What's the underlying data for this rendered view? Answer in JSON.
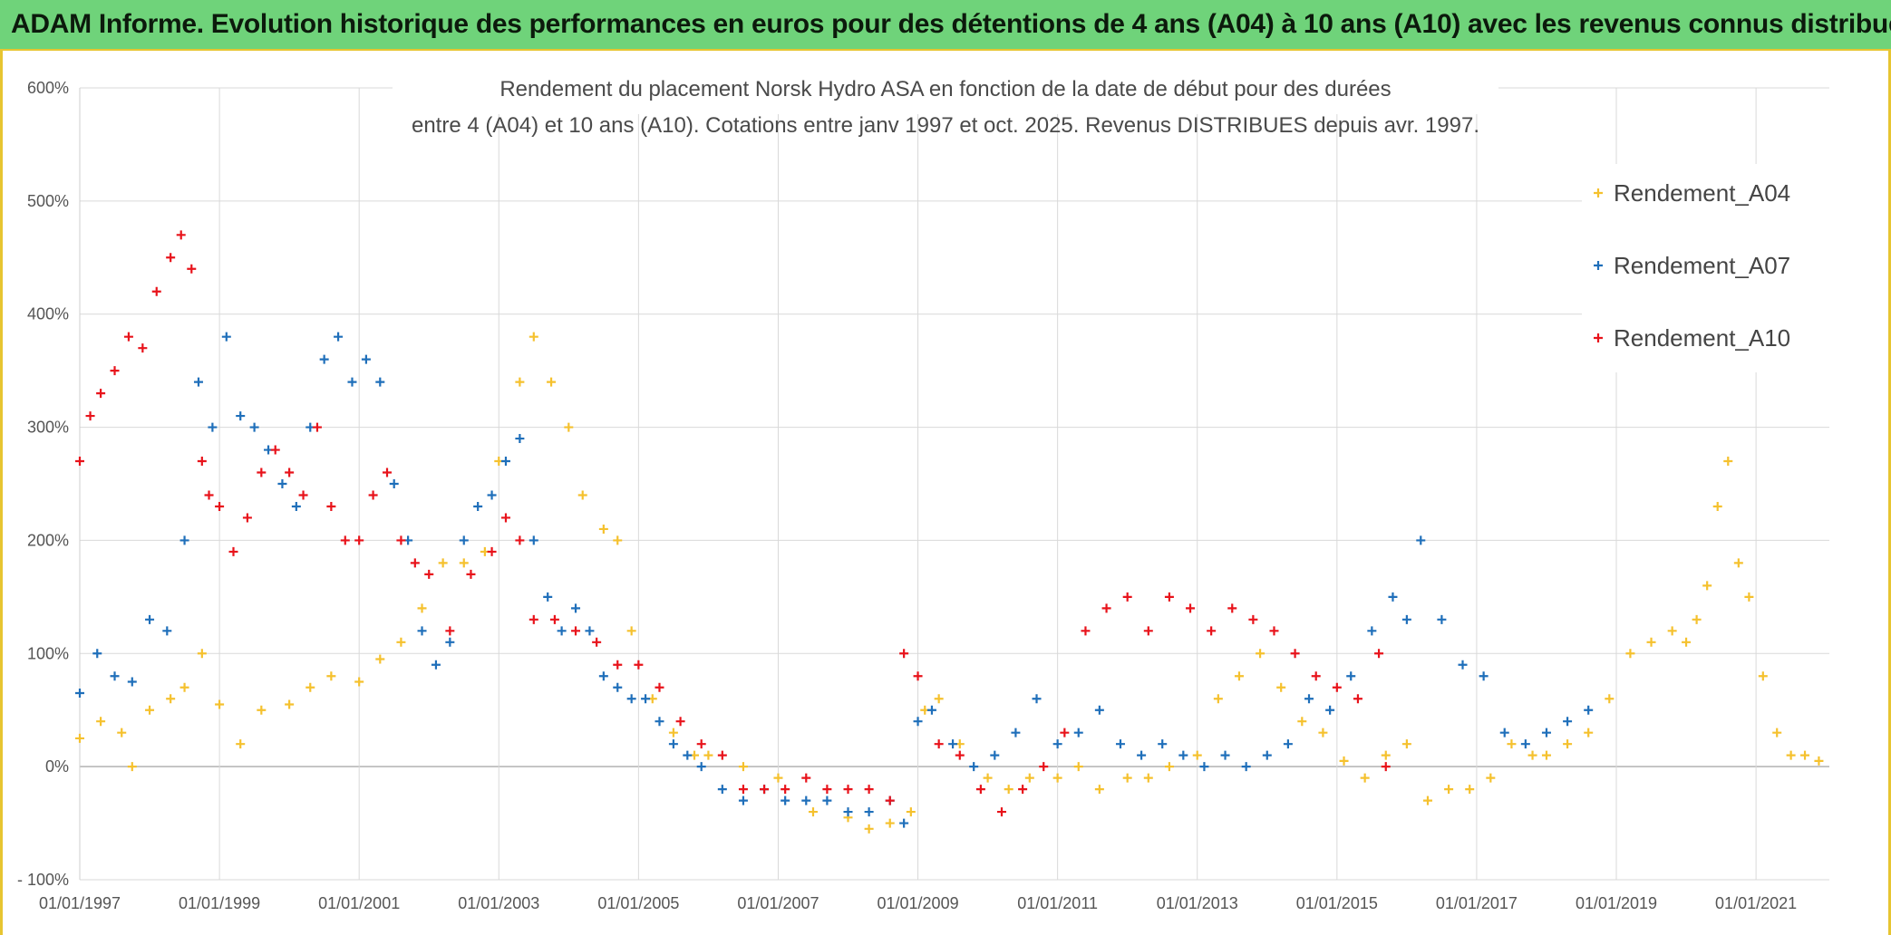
{
  "banner": {
    "text": "ADAM Informe. Evolution historique des performances en euros pour des détentions de 4 ans (A04) à 10 ans (A10) avec les revenus connus distribués",
    "color": "#6fd37a"
  },
  "chart_data": {
    "type": "scatter",
    "title_line1": "Rendement du placement Norsk Hydro ASA en fonction de la date de début pour des durées",
    "title_line2": "entre 4 (A04) et 10 ans (A10). Cotations entre janv 1997 et oct. 2025. Revenus DISTRIBUES depuis avr. 1997.",
    "xlabel": "",
    "ylabel": "",
    "xlim": [
      1997.0,
      2022.05
    ],
    "ylim": [
      -100,
      600
    ],
    "grid": true,
    "legend_position": "top-right",
    "x_tick_labels": [
      "01/01/1997",
      "01/01/1999",
      "01/01/2001",
      "01/01/2003",
      "01/01/2005",
      "01/01/2007",
      "01/01/2009",
      "01/01/2011",
      "01/01/2013",
      "01/01/2015",
      "01/01/2017",
      "01/01/2019",
      "01/01/2021"
    ],
    "x_tick_values": [
      1997,
      1999,
      2001,
      2003,
      2005,
      2007,
      2009,
      2011,
      2013,
      2015,
      2017,
      2019,
      2021
    ],
    "y_tick_labels": [
      "- 100%",
      "0%",
      "100%",
      "200%",
      "300%",
      "400%",
      "500%",
      "600%"
    ],
    "y_tick_values": [
      -100,
      0,
      100,
      200,
      300,
      400,
      500,
      600
    ],
    "series": [
      {
        "name": "Rendement_A04",
        "color": "#f5c12e",
        "x": [
          1997.0,
          1997.3,
          1997.6,
          1997.75,
          1998.0,
          1998.3,
          1998.5,
          1998.75,
          1999.0,
          1999.3,
          1999.6,
          2000.0,
          2000.3,
          2000.6,
          2001.0,
          2001.3,
          2001.6,
          2001.9,
          2002.2,
          2002.5,
          2002.8,
          2003.0,
          2003.3,
          2003.5,
          2003.75,
          2004.0,
          2004.2,
          2004.5,
          2004.7,
          2004.9,
          2005.2,
          2005.5,
          2005.8,
          2006.0,
          2006.5,
          2007.0,
          2007.5,
          2008.0,
          2008.3,
          2008.6,
          2008.9,
          2009.1,
          2009.3,
          2009.6,
          2010.0,
          2010.3,
          2010.6,
          2011.0,
          2011.3,
          2011.6,
          2012.0,
          2012.3,
          2012.6,
          2013.0,
          2013.3,
          2013.6,
          2013.9,
          2014.2,
          2014.5,
          2014.8,
          2015.1,
          2015.4,
          2015.7,
          2016.0,
          2016.3,
          2016.6,
          2016.9,
          2017.2,
          2017.5,
          2017.8,
          2018.0,
          2018.3,
          2018.6,
          2018.9,
          2019.2,
          2019.5,
          2019.8,
          2020.0,
          2020.15,
          2020.3,
          2020.45,
          2020.6,
          2020.75,
          2020.9,
          2021.1,
          2021.3,
          2021.5,
          2021.7,
          2021.9
        ],
        "y": [
          25,
          40,
          30,
          0,
          50,
          60,
          70,
          100,
          55,
          20,
          50,
          55,
          70,
          80,
          75,
          95,
          110,
          140,
          180,
          180,
          190,
          270,
          340,
          380,
          340,
          300,
          240,
          210,
          200,
          120,
          60,
          30,
          10,
          10,
          0,
          -10,
          -40,
          -45,
          -55,
          -50,
          -40,
          50,
          60,
          20,
          -10,
          -20,
          -10,
          -10,
          0,
          -20,
          -10,
          -10,
          0,
          10,
          60,
          80,
          100,
          70,
          40,
          30,
          5,
          -10,
          10,
          20,
          -30,
          -20,
          -20,
          -10,
          20,
          10,
          10,
          20,
          30,
          60,
          100,
          110,
          120,
          110,
          130,
          160,
          230,
          270,
          180,
          150,
          80,
          30,
          10,
          10,
          5
        ]
      },
      {
        "name": "Rendement_A07",
        "color": "#1f6fba",
        "x": [
          1997.0,
          1997.25,
          1997.5,
          1997.75,
          1998.0,
          1998.25,
          1998.5,
          1998.7,
          1998.9,
          1999.1,
          1999.3,
          1999.5,
          1999.7,
          1999.9,
          2000.1,
          2000.3,
          2000.5,
          2000.7,
          2000.9,
          2001.1,
          2001.3,
          2001.5,
          2001.7,
          2001.9,
          2002.1,
          2002.3,
          2002.5,
          2002.7,
          2002.9,
          2003.1,
          2003.3,
          2003.5,
          2003.7,
          2003.9,
          2004.1,
          2004.3,
          2004.5,
          2004.7,
          2004.9,
          2005.1,
          2005.3,
          2005.5,
          2005.7,
          2005.9,
          2006.2,
          2006.5,
          2006.8,
          2007.1,
          2007.4,
          2007.7,
          2008.0,
          2008.3,
          2008.6,
          2008.8,
          2009.0,
          2009.2,
          2009.5,
          2009.8,
          2010.1,
          2010.4,
          2010.7,
          2011.0,
          2011.3,
          2011.6,
          2011.9,
          2012.2,
          2012.5,
          2012.8,
          2013.1,
          2013.4,
          2013.7,
          2014.0,
          2014.3,
          2014.6,
          2014.9,
          2015.2,
          2015.5,
          2015.8,
          2016.0,
          2016.2,
          2016.5,
          2016.8,
          2017.1,
          2017.4,
          2017.7,
          2018.0,
          2018.3,
          2018.6
        ],
        "y": [
          65,
          100,
          80,
          75,
          130,
          120,
          200,
          340,
          300,
          380,
          310,
          300,
          280,
          250,
          230,
          300,
          360,
          380,
          340,
          360,
          340,
          250,
          200,
          120,
          90,
          110,
          200,
          230,
          240,
          270,
          290,
          200,
          150,
          120,
          140,
          120,
          80,
          70,
          60,
          60,
          40,
          20,
          10,
          0,
          -20,
          -30,
          -20,
          -30,
          -30,
          -30,
          -40,
          -40,
          -30,
          -50,
          40,
          50,
          20,
          0,
          10,
          30,
          60,
          20,
          30,
          50,
          20,
          10,
          20,
          10,
          0,
          10,
          0,
          10,
          20,
          60,
          50,
          80,
          120,
          150,
          130,
          200,
          130,
          90,
          80,
          30,
          20,
          30,
          40,
          50
        ]
      },
      {
        "name": "Rendement_A10",
        "color": "#e8131b",
        "x": [
          1997.0,
          1997.15,
          1997.3,
          1997.5,
          1997.7,
          1997.9,
          1998.1,
          1998.3,
          1998.45,
          1998.6,
          1998.75,
          1998.85,
          1999.0,
          1999.2,
          1999.4,
          1999.6,
          1999.8,
          2000.0,
          2000.2,
          2000.4,
          2000.6,
          2000.8,
          2001.0,
          2001.2,
          2001.4,
          2001.6,
          2001.8,
          2002.0,
          2002.3,
          2002.6,
          2002.9,
          2003.1,
          2003.3,
          2003.5,
          2003.8,
          2004.1,
          2004.4,
          2004.7,
          2005.0,
          2005.3,
          2005.6,
          2005.9,
          2006.2,
          2006.5,
          2006.8,
          2007.1,
          2007.4,
          2007.7,
          2008.0,
          2008.3,
          2008.6,
          2008.8,
          2009.0,
          2009.3,
          2009.6,
          2009.9,
          2010.2,
          2010.5,
          2010.8,
          2011.1,
          2011.4,
          2011.7,
          2012.0,
          2012.3,
          2012.6,
          2012.9,
          2013.2,
          2013.5,
          2013.8,
          2014.1,
          2014.4,
          2014.7,
          2015.0,
          2015.3,
          2015.6,
          2015.7
        ],
        "y": [
          270,
          310,
          330,
          350,
          380,
          370,
          420,
          450,
          470,
          440,
          270,
          240,
          230,
          190,
          220,
          260,
          280,
          260,
          240,
          300,
          230,
          200,
          200,
          240,
          260,
          200,
          180,
          170,
          120,
          170,
          190,
          220,
          200,
          130,
          130,
          120,
          110,
          90,
          90,
          70,
          40,
          20,
          10,
          -20,
          -20,
          -20,
          -10,
          -20,
          -20,
          -20,
          -30,
          100,
          80,
          20,
          10,
          -20,
          -40,
          -20,
          0,
          30,
          120,
          140,
          150,
          120,
          150,
          140,
          120,
          140,
          130,
          120,
          100,
          80,
          70,
          60,
          100,
          0
        ]
      }
    ]
  }
}
